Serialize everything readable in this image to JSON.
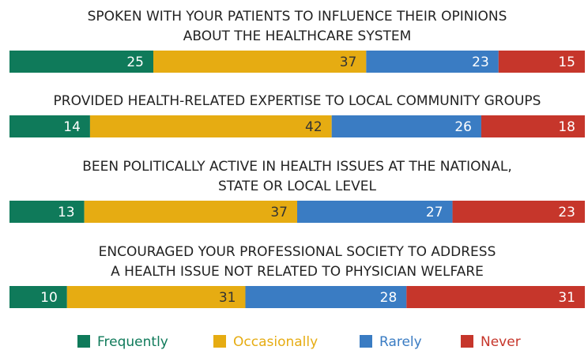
{
  "chart_data": {
    "type": "stacked-bar",
    "categories": [
      [
        "SPOKEN WITH YOUR PATIENTS TO INFLUENCE THEIR OPINIONS",
        "ABOUT THE HEALTHCARE SYSTEM"
      ],
      [
        "PROVIDED HEALTH-RELATED EXPERTISE TO LOCAL COMMUNITY GROUPS"
      ],
      [
        "BEEN POLITICALLY ACTIVE IN HEALTH ISSUES AT THE NATIONAL,",
        "STATE OR LOCAL LEVEL"
      ],
      [
        "ENCOURAGED YOUR PROFESSIONAL SOCIETY TO ADDRESS",
        "A HEALTH ISSUE NOT RELATED TO PHYSICIAN WELFARE"
      ]
    ],
    "series": [
      {
        "name": "Frequently",
        "color": "#0f7a5a",
        "values": [
          25,
          14,
          13,
          10
        ]
      },
      {
        "name": "Occasionally",
        "color": "#e6ac12",
        "values": [
          37,
          42,
          37,
          31
        ]
      },
      {
        "name": "Rarely",
        "color": "#3a7cc3",
        "values": [
          23,
          26,
          27,
          28
        ]
      },
      {
        "name": "Never",
        "color": "#c6362b",
        "values": [
          15,
          18,
          23,
          31
        ]
      }
    ],
    "xlim": [
      0,
      100
    ],
    "legend": "bottom"
  }
}
